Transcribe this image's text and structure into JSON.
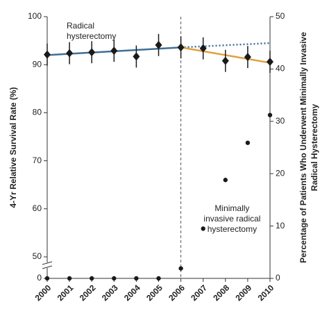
{
  "chart_data": {
    "type": "line",
    "x": [
      2000,
      2001,
      2002,
      2003,
      2004,
      2005,
      2006,
      2007,
      2008,
      2009,
      2010
    ],
    "xlim": [
      2000,
      2010
    ],
    "xticks": [
      2000,
      2001,
      2002,
      2003,
      2004,
      2005,
      2006,
      2007,
      2008,
      2009,
      2010
    ],
    "ylabel": "4-Yr Relative Survival Rate (%)",
    "ylim": [
      0,
      100
    ],
    "axis_break": [
      0,
      50
    ],
    "yticks": [
      0,
      50,
      60,
      70,
      80,
      90,
      100
    ],
    "y2label": [
      "Percentage of Patients Who Underwent Minimally Invasive",
      "Radical Hysterectomy"
    ],
    "y2lim": [
      0,
      50
    ],
    "y2ticks": [
      0,
      10,
      20,
      30,
      40,
      50
    ],
    "vline": 2006,
    "series": [
      {
        "color": "#1a1a1a",
        "marker": "diamond",
        "values": [
          92.1,
          92.4,
          92.6,
          92.9,
          91.7,
          94.1,
          93.6,
          93.4,
          90.8,
          91.6,
          90.6
        ],
        "errors": [
          2.3,
          2.3,
          2.3,
          2.3,
          2.3,
          2.3,
          2.3,
          2.3,
          2.3,
          2.3,
          2.3
        ]
      },
      {
        "color": "#1a1a1a",
        "marker": "dot",
        "axis": "y2",
        "values": [
          0,
          0,
          0,
          0,
          0,
          0,
          1.9,
          9.5,
          18.8,
          25.9,
          31.2
        ]
      }
    ],
    "trends": [
      {
        "color": "#3e6e96",
        "style": "solid",
        "x": [
          2000,
          2006
        ],
        "values": [
          92.0,
          93.6
        ]
      },
      {
        "color": "#3e6e96",
        "style": "dotted",
        "x": [
          2006,
          2010
        ],
        "values": [
          93.6,
          94.5
        ]
      },
      {
        "color": "#e0a040",
        "style": "solid",
        "x": [
          2006,
          2010
        ],
        "values": [
          93.6,
          90.4
        ]
      }
    ],
    "annotations": [
      {
        "lines": [
          "Radical",
          "hysterectomy"
        ],
        "x": 2000,
        "y": 98
      },
      {
        "lines": [
          "Minimally",
          "invasive radical",
          "hysterectomy"
        ],
        "x": 2008.3,
        "y": 60
      }
    ]
  }
}
